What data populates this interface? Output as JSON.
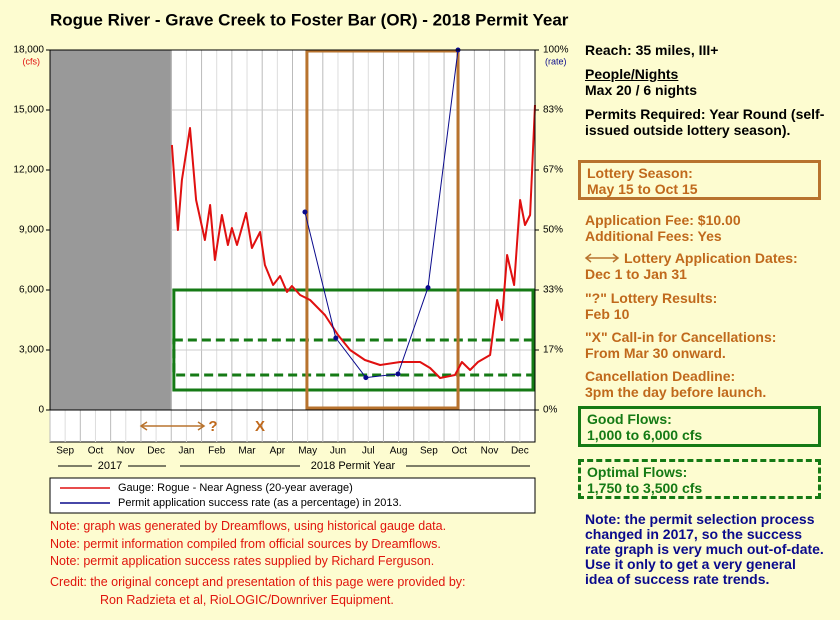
{
  "chart_data": {
    "type": "line",
    "title": "Rogue River - Grave Creek to Foster Bar (OR) - 2018 Permit Year",
    "y_label": "(cfs)",
    "y2_label": "(rate)",
    "categories": [
      "Sep",
      "Oct",
      "Nov",
      "Dec",
      "Jan",
      "Feb",
      "Mar",
      "Apr",
      "May",
      "Jun",
      "Jul",
      "Aug",
      "Sep",
      "Oct",
      "Nov",
      "Dec"
    ],
    "year_labels": [
      "2017",
      "2018 Permit Year"
    ],
    "axis_markers": [
      "?",
      "X"
    ],
    "xlim": [
      0,
      16
    ],
    "ylim": [
      0,
      18000
    ],
    "yticks": [
      0,
      {
        "value": 3000,
        "label": "3,000"
      },
      {
        "value": 6000,
        "label": "6,000"
      },
      {
        "value": 9000,
        "label": "9,000"
      },
      {
        "value": 12000,
        "label": "12,000"
      },
      {
        "value": 15000,
        "label": "15,000"
      },
      {
        "value": 18000,
        "label": "18,000"
      }
    ],
    "y2lim": [
      0,
      100
    ],
    "y2ticks": [
      {
        "value": 0,
        "label": "0%"
      },
      {
        "value": 16.67,
        "label": "17%"
      },
      {
        "value": 33.33,
        "label": "33%"
      },
      {
        "value": 50,
        "label": "50%"
      },
      {
        "value": 66.67,
        "label": "67%"
      },
      {
        "value": 83.33,
        "label": "83%"
      },
      {
        "value": 100,
        "label": "100%"
      }
    ],
    "grid": true,
    "flow_bands": {
      "good": [
        1000,
        6000
      ],
      "optimal": [
        1750,
        3500
      ]
    },
    "series": [
      {
        "name": "Gauge: Rogue - Near Agness (20-year average)",
        "color": "#e01010",
        "x": [
          4.02,
          4.22,
          4.35,
          4.62,
          4.82,
          5.11,
          5.28,
          5.44,
          5.67,
          5.87,
          6.0,
          6.17,
          6.47,
          6.66,
          6.93,
          7.09,
          7.36,
          7.59,
          7.82,
          7.98,
          8.25,
          8.58,
          9.07,
          9.5,
          9.9,
          10.39,
          10.89,
          11.55,
          12.21,
          12.54,
          12.87,
          13.36,
          13.59,
          13.86,
          14.12,
          14.52,
          14.75,
          14.91,
          15.08,
          15.31,
          15.51,
          15.67,
          15.84,
          16.0
        ],
        "values": [
          13250,
          9000,
          11500,
          14100,
          10500,
          8500,
          10250,
          7500,
          9750,
          8250,
          9100,
          8250,
          9850,
          8100,
          8900,
          7250,
          6250,
          6700,
          5900,
          6200,
          5750,
          5500,
          4750,
          3750,
          3000,
          2500,
          2250,
          2400,
          2400,
          2100,
          1600,
          1750,
          2400,
          2000,
          2400,
          2750,
          5500,
          4500,
          7750,
          6250,
          10500,
          9250,
          9750,
          15250
        ]
      },
      {
        "name": "Permit application success rate (as a percentage) in 2013.",
        "color": "#0a0a8c",
        "axis": "y2",
        "x": [
          8.41,
          9.43,
          10.42,
          11.48,
          12.47,
          13.46
        ],
        "values": [
          55,
          20,
          9,
          10,
          34,
          100
        ]
      }
    ]
  },
  "side": {
    "reach": "Reach: 35 miles, III+",
    "people_title": "People/Nights",
    "people": "Max 20 / 6 nights",
    "permits": "Permits Required: Year Round (self-issued outside lottery season).",
    "lottery_title": "Lottery Season:",
    "lottery": "May 15 to Oct 15",
    "fee": "Application Fee: $10.00",
    "additional": "Additional Fees: Yes",
    "dates_title": "Lottery Application Dates:",
    "dates": "Dec 1 to Jan 31",
    "results_title": "\"?\" Lottery Results:",
    "results": "Feb 10",
    "callin_title": "\"X\" Call-in for Cancellations:",
    "callin": "From Mar 30 onward.",
    "deadline_title": "Cancellation Deadline:",
    "deadline": "3pm the day before launch.",
    "good_title": "Good Flows:",
    "good": "1,000 to 6,000 cfs",
    "optimal_title": "Optimal Flows:",
    "optimal": "1,750 to 3,500 cfs",
    "blue_note": "Note: the permit selection process changed in 2017,  so the success rate graph is very much out-of-date.  Use it only to get a very general idea of success rate trends."
  },
  "notes": [
    "Note: graph was generated by Dreamflows, using historical gauge data.",
    "Note: permit information compiled from official sources by Dreamflows.",
    "Note: permit application success rates supplied by Richard Ferguson."
  ],
  "credit": [
    "Credit: the original concept and presentation of this page were provided by:",
    "Ron Radzieta et al, RioLOGIC/Downriver Equipment."
  ]
}
